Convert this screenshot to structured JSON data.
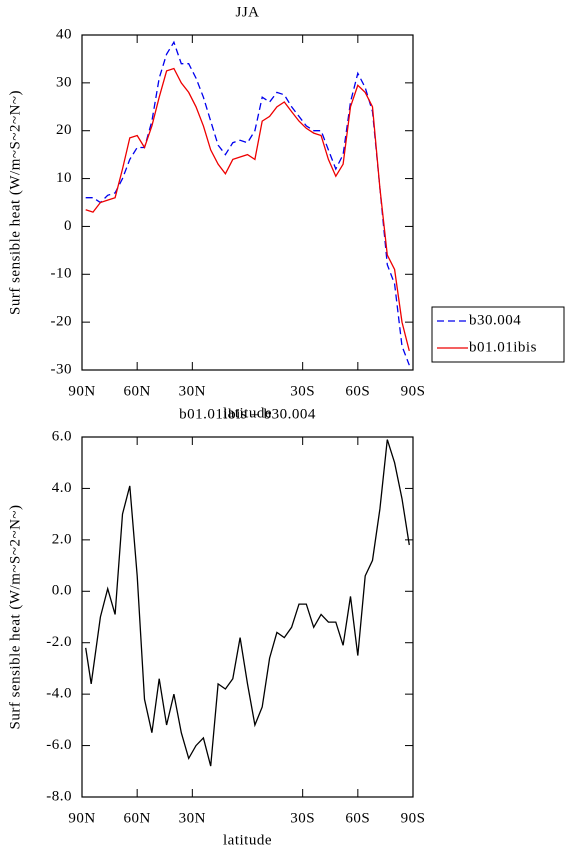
{
  "chart_data": [
    {
      "type": "line",
      "title": "JJA",
      "x_label": "latitude",
      "y_label": "Surf sensible heat (W/m~S~2~N~)",
      "x": [
        88,
        84,
        80,
        76,
        72,
        68,
        64,
        60,
        56,
        52,
        48,
        44,
        40,
        36,
        32,
        28,
        24,
        20,
        16,
        12,
        8,
        4,
        0,
        -4,
        -8,
        -12,
        -16,
        -20,
        -24,
        -28,
        -32,
        -36,
        -40,
        -44,
        -48,
        -52,
        -56,
        -60,
        -64,
        -68,
        -72,
        -76,
        -80,
        -84,
        -88
      ],
      "xlim": [
        90,
        -90
      ],
      "xticks": [
        {
          "value": 90,
          "label": "90N"
        },
        {
          "value": 60,
          "label": "60N"
        },
        {
          "value": 30,
          "label": "30N"
        },
        {
          "value": -30,
          "label": "30S"
        },
        {
          "value": -60,
          "label": "60S"
        },
        {
          "value": -90,
          "label": "90S"
        }
      ],
      "ylim": [
        -30,
        40
      ],
      "yticks": [
        -30,
        -20,
        -10,
        0,
        10,
        20,
        30,
        40
      ],
      "legend": "right",
      "series": [
        {
          "name": "b30.004",
          "color": "#0000ee",
          "line_style": "dashed",
          "values": [
            6,
            6,
            5,
            6.5,
            7,
            10,
            14,
            16.5,
            16.5,
            22,
            31,
            36,
            38.5,
            34,
            34,
            31,
            27,
            22,
            17,
            15,
            17.5,
            18,
            17.5,
            20,
            27,
            26,
            28,
            27.5,
            25,
            23,
            21,
            20,
            20,
            16,
            12,
            15,
            26,
            32,
            29,
            24,
            8,
            -8,
            -12,
            -25,
            -29
          ]
        },
        {
          "name": "b01.01ibis",
          "color": "#ee0000",
          "line_style": "solid",
          "values": [
            3.5,
            3,
            5,
            5.5,
            6,
            12,
            18.5,
            19,
            16.5,
            21,
            27,
            32.5,
            33,
            30,
            28,
            25,
            21,
            16,
            13,
            11,
            14,
            14.5,
            15,
            14,
            22,
            23,
            25,
            26,
            24,
            22,
            20.5,
            19.5,
            19,
            14,
            10.5,
            13,
            25,
            29.5,
            28,
            25,
            8,
            -6,
            -9,
            -20,
            -26
          ]
        }
      ]
    },
    {
      "type": "line",
      "title": "b01.01ibis – b30.004",
      "x_label": "latitude",
      "y_label": "Surf sensible heat (W/m~S~2~N~)",
      "x": [
        88,
        85,
        80,
        76,
        72,
        68,
        64,
        60,
        56,
        52,
        48,
        44,
        40,
        36,
        32,
        28,
        24,
        20,
        16,
        12,
        8,
        4,
        0,
        -4,
        -8,
        -12,
        -16,
        -20,
        -24,
        -28,
        -32,
        -36,
        -40,
        -44,
        -48,
        -52,
        -56,
        -60,
        -64,
        -68,
        -72,
        -76,
        -80,
        -84,
        -88
      ],
      "xlim": [
        90,
        -90
      ],
      "xticks": [
        {
          "value": 90,
          "label": "90N"
        },
        {
          "value": 60,
          "label": "60N"
        },
        {
          "value": 30,
          "label": "30N"
        },
        {
          "value": -30,
          "label": "30S"
        },
        {
          "value": -60,
          "label": "60S"
        },
        {
          "value": -90,
          "label": "90S"
        }
      ],
      "ylim": [
        -8,
        6
      ],
      "yticks": [
        {
          "value": -8,
          "label": "-8.0"
        },
        {
          "value": -6,
          "label": "-6.0"
        },
        {
          "value": -4,
          "label": "-4.0"
        },
        {
          "value": -2,
          "label": "-2.0"
        },
        {
          "value": 0,
          "label": "0.0"
        },
        {
          "value": 2,
          "label": "2.0"
        },
        {
          "value": 4,
          "label": "4.0"
        },
        {
          "value": 6,
          "label": "6.0"
        }
      ],
      "series": [
        {
          "color": "#000000",
          "line_style": "solid",
          "values": [
            -2.2,
            -3.6,
            -1,
            0.1,
            -0.9,
            3,
            4.1,
            0.6,
            -4.2,
            -5.5,
            -3.4,
            -5.2,
            -4,
            -5.5,
            -6.5,
            -6,
            -5.7,
            -6.8,
            -3.6,
            -3.8,
            -3.4,
            -1.8,
            -3.6,
            -5.2,
            -4.5,
            -2.6,
            -1.6,
            -1.8,
            -1.4,
            -0.5,
            -0.5,
            -1.4,
            -0.9,
            -1.2,
            -1.2,
            -2.1,
            -0.2,
            -2.5,
            0.6,
            1.2,
            3.2,
            5.9,
            5,
            3.6,
            1.8
          ]
        }
      ]
    }
  ]
}
